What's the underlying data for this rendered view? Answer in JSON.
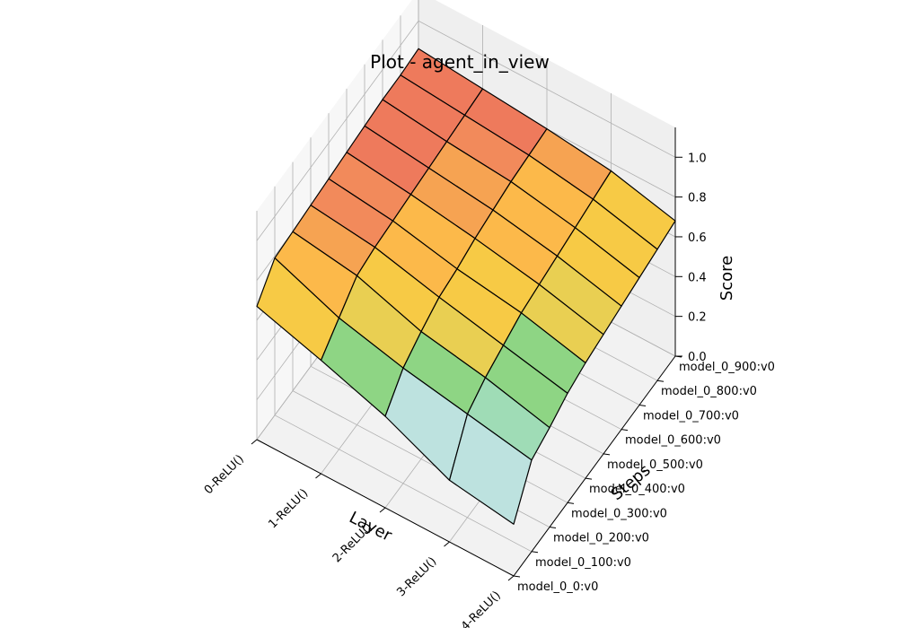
{
  "chart_data": {
    "type": "surface3d",
    "title": "Plot - agent_in_view",
    "xlabel": "Layer",
    "ylabel": "Steps",
    "zlabel": "Score",
    "x_categories": [
      "0-ReLU()",
      "1-ReLU()",
      "2-ReLU()",
      "3-ReLU()",
      "4-ReLU()"
    ],
    "y_categories": [
      "model_0_0:v0",
      "model_0_100:v0",
      "model_0_200:v0",
      "model_0_300:v0",
      "model_0_400:v0",
      "model_0_500:v0",
      "model_0_600:v0",
      "model_0_700:v0",
      "model_0_800:v0",
      "model_0_900:v0"
    ],
    "z_ticks": [
      "0.0",
      "0.2",
      "0.4",
      "0.6",
      "0.8",
      "1.0"
    ],
    "zlim": [
      0,
      1
    ],
    "grid": true,
    "values": [
      [
        0.67,
        0.57,
        0.46,
        0.31,
        0.26
      ],
      [
        0.79,
        0.66,
        0.58,
        0.52,
        0.46
      ],
      [
        0.8,
        0.75,
        0.64,
        0.58,
        0.5
      ],
      [
        0.81,
        0.77,
        0.69,
        0.62,
        0.55
      ],
      [
        0.82,
        0.78,
        0.71,
        0.66,
        0.58
      ],
      [
        0.83,
        0.79,
        0.74,
        0.68,
        0.6
      ],
      [
        0.84,
        0.8,
        0.76,
        0.7,
        0.62
      ],
      [
        0.85,
        0.81,
        0.78,
        0.72,
        0.64
      ],
      [
        0.85,
        0.82,
        0.79,
        0.74,
        0.66
      ],
      [
        0.86,
        0.83,
        0.8,
        0.76,
        0.68
      ]
    ]
  }
}
